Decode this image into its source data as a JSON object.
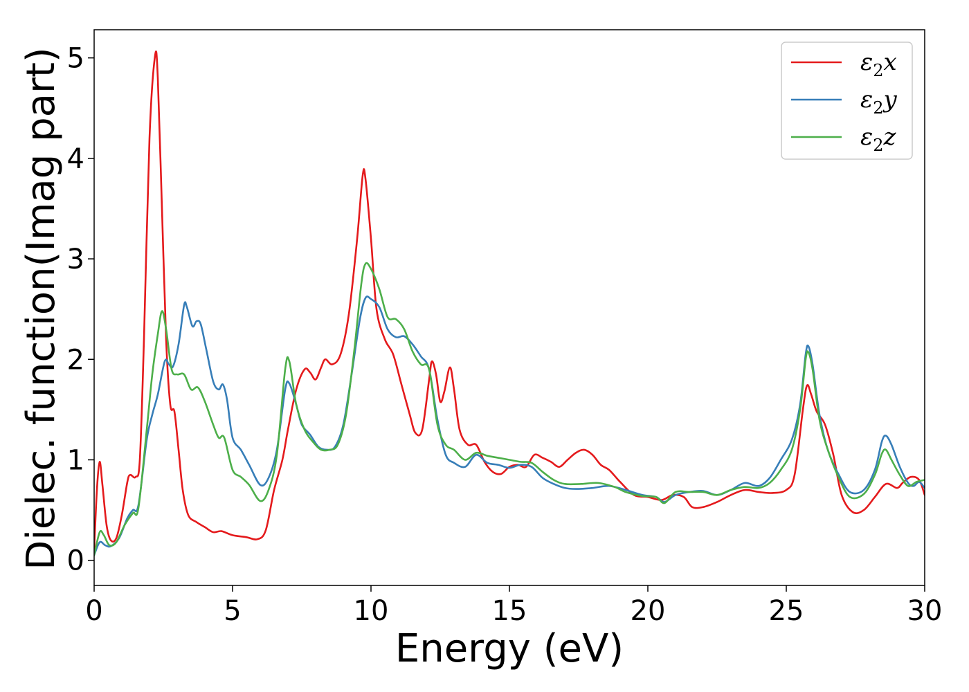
{
  "chart_data": {
    "type": "line",
    "title": "",
    "xlabel": "Energy (eV)",
    "ylabel": "Dielec. function(Imag part)",
    "xlim": [
      0,
      30
    ],
    "ylim": [
      -0.25,
      5.28
    ],
    "xticks": [
      0,
      5,
      10,
      15,
      20,
      25,
      30
    ],
    "yticks": [
      0,
      1,
      2,
      3,
      4,
      5
    ],
    "grid": false,
    "legend_position": "top-right",
    "series": [
      {
        "name": "ε₂x",
        "legend_base": "ε",
        "legend_sub": "2",
        "legend_suffix": "x",
        "color": "#e41a1c",
        "points": [
          [
            0,
            0.1
          ],
          [
            0.1,
            0.7
          ],
          [
            0.2,
            0.98
          ],
          [
            0.3,
            0.75
          ],
          [
            0.45,
            0.35
          ],
          [
            0.6,
            0.2
          ],
          [
            0.8,
            0.22
          ],
          [
            1.0,
            0.45
          ],
          [
            1.2,
            0.78
          ],
          [
            1.3,
            0.85
          ],
          [
            1.5,
            0.83
          ],
          [
            1.65,
            1.0
          ],
          [
            1.8,
            2.2
          ],
          [
            2.0,
            4.2
          ],
          [
            2.2,
            5.02
          ],
          [
            2.3,
            4.8
          ],
          [
            2.45,
            3.5
          ],
          [
            2.6,
            2.2
          ],
          [
            2.75,
            1.55
          ],
          [
            2.9,
            1.48
          ],
          [
            3.05,
            1.1
          ],
          [
            3.2,
            0.7
          ],
          [
            3.4,
            0.45
          ],
          [
            3.7,
            0.38
          ],
          [
            4.0,
            0.33
          ],
          [
            4.3,
            0.28
          ],
          [
            4.6,
            0.29
          ],
          [
            5.0,
            0.25
          ],
          [
            5.5,
            0.23
          ],
          [
            5.9,
            0.21
          ],
          [
            6.2,
            0.3
          ],
          [
            6.5,
            0.7
          ],
          [
            6.8,
            1.0
          ],
          [
            7.0,
            1.3
          ],
          [
            7.3,
            1.7
          ],
          [
            7.6,
            1.9
          ],
          [
            7.8,
            1.87
          ],
          [
            8.0,
            1.8
          ],
          [
            8.2,
            1.92
          ],
          [
            8.35,
            2.0
          ],
          [
            8.6,
            1.95
          ],
          [
            8.9,
            2.05
          ],
          [
            9.2,
            2.45
          ],
          [
            9.5,
            3.2
          ],
          [
            9.7,
            3.83
          ],
          [
            9.8,
            3.8
          ],
          [
            10.0,
            3.2
          ],
          [
            10.2,
            2.5
          ],
          [
            10.5,
            2.2
          ],
          [
            10.8,
            2.05
          ],
          [
            11.1,
            1.75
          ],
          [
            11.4,
            1.45
          ],
          [
            11.6,
            1.27
          ],
          [
            11.85,
            1.3
          ],
          [
            12.1,
            1.8
          ],
          [
            12.2,
            1.98
          ],
          [
            12.35,
            1.85
          ],
          [
            12.5,
            1.58
          ],
          [
            12.65,
            1.68
          ],
          [
            12.85,
            1.92
          ],
          [
            13.0,
            1.7
          ],
          [
            13.2,
            1.3
          ],
          [
            13.5,
            1.15
          ],
          [
            13.8,
            1.15
          ],
          [
            14.1,
            0.98
          ],
          [
            14.4,
            0.88
          ],
          [
            14.7,
            0.86
          ],
          [
            15.0,
            0.93
          ],
          [
            15.3,
            0.95
          ],
          [
            15.6,
            0.93
          ],
          [
            15.9,
            1.05
          ],
          [
            16.2,
            1.02
          ],
          [
            16.5,
            0.98
          ],
          [
            16.8,
            0.93
          ],
          [
            17.1,
            1.0
          ],
          [
            17.4,
            1.07
          ],
          [
            17.7,
            1.1
          ],
          [
            18.0,
            1.05
          ],
          [
            18.3,
            0.95
          ],
          [
            18.6,
            0.9
          ],
          [
            19.0,
            0.78
          ],
          [
            19.5,
            0.65
          ],
          [
            20.0,
            0.63
          ],
          [
            20.5,
            0.6
          ],
          [
            20.9,
            0.65
          ],
          [
            21.3,
            0.63
          ],
          [
            21.6,
            0.53
          ],
          [
            22.0,
            0.53
          ],
          [
            22.5,
            0.58
          ],
          [
            23.0,
            0.65
          ],
          [
            23.5,
            0.7
          ],
          [
            24.0,
            0.68
          ],
          [
            24.5,
            0.67
          ],
          [
            25.0,
            0.7
          ],
          [
            25.3,
            0.85
          ],
          [
            25.6,
            1.5
          ],
          [
            25.75,
            1.74
          ],
          [
            25.9,
            1.65
          ],
          [
            26.1,
            1.48
          ],
          [
            26.4,
            1.35
          ],
          [
            26.7,
            1.05
          ],
          [
            27.0,
            0.65
          ],
          [
            27.4,
            0.48
          ],
          [
            27.8,
            0.5
          ],
          [
            28.2,
            0.63
          ],
          [
            28.6,
            0.76
          ],
          [
            29.0,
            0.72
          ],
          [
            29.2,
            0.77
          ],
          [
            29.5,
            0.83
          ],
          [
            29.8,
            0.8
          ],
          [
            30,
            0.65
          ]
        ]
      },
      {
        "name": "ε₂y",
        "legend_base": "ε",
        "legend_sub": "2",
        "legend_suffix": "y",
        "color": "#377eb8",
        "points": [
          [
            0,
            0.05
          ],
          [
            0.2,
            0.18
          ],
          [
            0.4,
            0.15
          ],
          [
            0.6,
            0.14
          ],
          [
            0.9,
            0.22
          ],
          [
            1.2,
            0.42
          ],
          [
            1.4,
            0.5
          ],
          [
            1.6,
            0.55
          ],
          [
            1.9,
            1.2
          ],
          [
            2.1,
            1.45
          ],
          [
            2.3,
            1.65
          ],
          [
            2.55,
            1.98
          ],
          [
            2.7,
            1.95
          ],
          [
            2.85,
            1.93
          ],
          [
            3.05,
            2.15
          ],
          [
            3.25,
            2.54
          ],
          [
            3.35,
            2.52
          ],
          [
            3.55,
            2.33
          ],
          [
            3.7,
            2.38
          ],
          [
            3.85,
            2.35
          ],
          [
            4.05,
            2.1
          ],
          [
            4.3,
            1.78
          ],
          [
            4.5,
            1.7
          ],
          [
            4.65,
            1.75
          ],
          [
            4.8,
            1.6
          ],
          [
            5.0,
            1.22
          ],
          [
            5.3,
            1.1
          ],
          [
            5.6,
            0.95
          ],
          [
            6.0,
            0.75
          ],
          [
            6.3,
            0.82
          ],
          [
            6.6,
            1.1
          ],
          [
            6.9,
            1.7
          ],
          [
            7.05,
            1.76
          ],
          [
            7.3,
            1.55
          ],
          [
            7.5,
            1.35
          ],
          [
            7.8,
            1.25
          ],
          [
            8.1,
            1.13
          ],
          [
            8.4,
            1.1
          ],
          [
            8.7,
            1.13
          ],
          [
            9.0,
            1.35
          ],
          [
            9.3,
            1.85
          ],
          [
            9.6,
            2.4
          ],
          [
            9.8,
            2.61
          ],
          [
            10.0,
            2.6
          ],
          [
            10.3,
            2.52
          ],
          [
            10.6,
            2.3
          ],
          [
            10.9,
            2.22
          ],
          [
            11.2,
            2.23
          ],
          [
            11.5,
            2.15
          ],
          [
            11.8,
            2.03
          ],
          [
            12.1,
            1.9
          ],
          [
            12.4,
            1.4
          ],
          [
            12.7,
            1.05
          ],
          [
            13.0,
            0.97
          ],
          [
            13.4,
            0.93
          ],
          [
            13.8,
            1.05
          ],
          [
            14.2,
            0.97
          ],
          [
            14.6,
            0.95
          ],
          [
            15.0,
            0.92
          ],
          [
            15.4,
            0.95
          ],
          [
            15.8,
            0.93
          ],
          [
            16.2,
            0.82
          ],
          [
            16.6,
            0.76
          ],
          [
            17.0,
            0.72
          ],
          [
            17.4,
            0.71
          ],
          [
            18.0,
            0.72
          ],
          [
            18.6,
            0.74
          ],
          [
            19.2,
            0.7
          ],
          [
            19.8,
            0.65
          ],
          [
            20.3,
            0.63
          ],
          [
            20.6,
            0.58
          ],
          [
            21.0,
            0.65
          ],
          [
            21.5,
            0.68
          ],
          [
            22.0,
            0.69
          ],
          [
            22.5,
            0.65
          ],
          [
            23.0,
            0.7
          ],
          [
            23.5,
            0.77
          ],
          [
            24.0,
            0.74
          ],
          [
            24.4,
            0.82
          ],
          [
            24.8,
            1.0
          ],
          [
            25.2,
            1.2
          ],
          [
            25.5,
            1.55
          ],
          [
            25.7,
            2.05
          ],
          [
            25.8,
            2.13
          ],
          [
            25.95,
            1.95
          ],
          [
            26.2,
            1.45
          ],
          [
            26.5,
            1.1
          ],
          [
            26.9,
            0.85
          ],
          [
            27.3,
            0.68
          ],
          [
            27.8,
            0.7
          ],
          [
            28.2,
            0.9
          ],
          [
            28.45,
            1.18
          ],
          [
            28.6,
            1.24
          ],
          [
            28.8,
            1.15
          ],
          [
            29.1,
            0.93
          ],
          [
            29.4,
            0.77
          ],
          [
            29.6,
            0.74
          ],
          [
            29.8,
            0.78
          ],
          [
            30,
            0.72
          ]
        ]
      },
      {
        "name": "ε₂z",
        "legend_base": "ε",
        "legend_sub": "2",
        "legend_suffix": "z",
        "color": "#4daf4a",
        "points": [
          [
            0,
            0.05
          ],
          [
            0.2,
            0.28
          ],
          [
            0.35,
            0.25
          ],
          [
            0.55,
            0.15
          ],
          [
            0.8,
            0.18
          ],
          [
            1.1,
            0.35
          ],
          [
            1.4,
            0.47
          ],
          [
            1.6,
            0.52
          ],
          [
            1.9,
            1.3
          ],
          [
            2.1,
            1.85
          ],
          [
            2.3,
            2.25
          ],
          [
            2.45,
            2.48
          ],
          [
            2.6,
            2.3
          ],
          [
            2.8,
            1.9
          ],
          [
            3.0,
            1.85
          ],
          [
            3.25,
            1.85
          ],
          [
            3.5,
            1.7
          ],
          [
            3.75,
            1.72
          ],
          [
            4.0,
            1.58
          ],
          [
            4.3,
            1.35
          ],
          [
            4.5,
            1.22
          ],
          [
            4.7,
            1.22
          ],
          [
            5.0,
            0.9
          ],
          [
            5.3,
            0.83
          ],
          [
            5.6,
            0.75
          ],
          [
            6.0,
            0.59
          ],
          [
            6.3,
            0.7
          ],
          [
            6.6,
            1.05
          ],
          [
            6.9,
            1.9
          ],
          [
            7.05,
            1.98
          ],
          [
            7.3,
            1.55
          ],
          [
            7.6,
            1.3
          ],
          [
            7.9,
            1.18
          ],
          [
            8.2,
            1.1
          ],
          [
            8.5,
            1.1
          ],
          [
            8.8,
            1.15
          ],
          [
            9.1,
            1.45
          ],
          [
            9.4,
            2.1
          ],
          [
            9.65,
            2.75
          ],
          [
            9.8,
            2.95
          ],
          [
            10.0,
            2.9
          ],
          [
            10.3,
            2.7
          ],
          [
            10.6,
            2.42
          ],
          [
            10.9,
            2.4
          ],
          [
            11.2,
            2.3
          ],
          [
            11.5,
            2.08
          ],
          [
            11.8,
            1.95
          ],
          [
            12.1,
            1.9
          ],
          [
            12.4,
            1.35
          ],
          [
            12.7,
            1.15
          ],
          [
            13.0,
            1.1
          ],
          [
            13.4,
            1.0
          ],
          [
            13.8,
            1.07
          ],
          [
            14.2,
            1.04
          ],
          [
            14.6,
            1.02
          ],
          [
            15.0,
            1.0
          ],
          [
            15.4,
            0.98
          ],
          [
            15.8,
            0.97
          ],
          [
            16.2,
            0.88
          ],
          [
            16.6,
            0.8
          ],
          [
            17.0,
            0.76
          ],
          [
            17.6,
            0.76
          ],
          [
            18.2,
            0.77
          ],
          [
            18.8,
            0.73
          ],
          [
            19.2,
            0.68
          ],
          [
            19.8,
            0.64
          ],
          [
            20.3,
            0.63
          ],
          [
            20.6,
            0.57
          ],
          [
            21.0,
            0.68
          ],
          [
            21.5,
            0.68
          ],
          [
            22.0,
            0.68
          ],
          [
            22.5,
            0.65
          ],
          [
            23.0,
            0.7
          ],
          [
            23.5,
            0.73
          ],
          [
            24.0,
            0.72
          ],
          [
            24.4,
            0.77
          ],
          [
            24.8,
            0.9
          ],
          [
            25.2,
            1.1
          ],
          [
            25.5,
            1.5
          ],
          [
            25.7,
            2.0
          ],
          [
            25.8,
            2.07
          ],
          [
            25.95,
            1.9
          ],
          [
            26.2,
            1.4
          ],
          [
            26.5,
            1.1
          ],
          [
            26.9,
            0.82
          ],
          [
            27.3,
            0.63
          ],
          [
            27.8,
            0.66
          ],
          [
            28.2,
            0.85
          ],
          [
            28.45,
            1.06
          ],
          [
            28.6,
            1.1
          ],
          [
            28.8,
            1.0
          ],
          [
            29.1,
            0.85
          ],
          [
            29.4,
            0.74
          ],
          [
            29.7,
            0.78
          ],
          [
            30,
            0.8
          ]
        ]
      }
    ]
  }
}
